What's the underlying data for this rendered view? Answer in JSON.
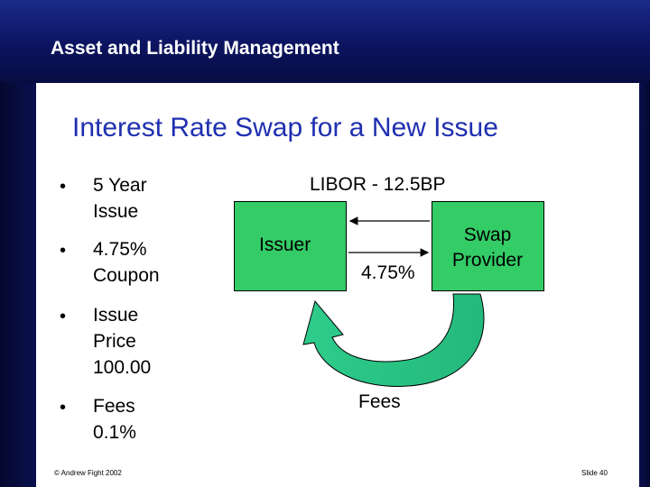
{
  "header": {
    "title": "Asset and Liability Management"
  },
  "slide": {
    "title": "Interest Rate Swap for a New Issue",
    "bullets": [
      {
        "marker": "•",
        "text": "5 Year\nIssue"
      },
      {
        "marker": "•",
        "text": "4.75%\nCoupon"
      },
      {
        "marker": "•",
        "text": "Issue\nPrice\n100.00"
      },
      {
        "marker": "•",
        "text": "Fees\n0.1%"
      }
    ]
  },
  "diagram": {
    "issuer_label": "Issuer",
    "swap_provider_label": "Swap\nProvider",
    "libor_label": "LIBOR - 12.5BP",
    "fixed_label": "4.75%",
    "fees_label": "Fees",
    "box_color": "#33cc66"
  },
  "footer": {
    "copyright": "© Andrew Fight 2002",
    "slide_number": "Slide 40"
  },
  "colors": {
    "header_bg": "#0c1460",
    "title_color": "#1f2fb0"
  }
}
